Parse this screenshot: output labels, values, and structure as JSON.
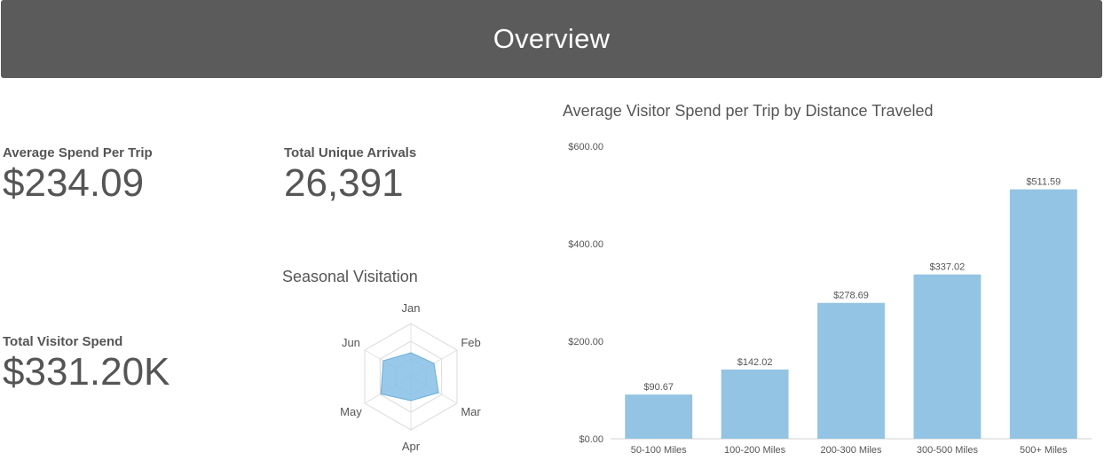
{
  "header": {
    "title": "Overview"
  },
  "kpis": {
    "avg_spend": {
      "label": "Average Spend Per Trip",
      "value": "$234.09"
    },
    "arrivals": {
      "label": "Total Unique Arrivals",
      "value": "26,391"
    },
    "total_spend": {
      "label": "Total Visitor Spend",
      "value": "$331.20K"
    }
  },
  "colors": {
    "bar": "#93c4e4",
    "radar_fill": "#86bfe6",
    "grid": "#e0e0e0",
    "text": "#555555"
  },
  "chart_data": [
    {
      "type": "radar",
      "title": "Seasonal Visitation",
      "categories": [
        "Jan",
        "Feb",
        "Mar",
        "Apr",
        "May",
        "Jun"
      ],
      "values": [
        0.45,
        0.5,
        0.6,
        0.45,
        0.65,
        0.6
      ],
      "rings": 3,
      "max": 1
    },
    {
      "type": "bar",
      "title": "Average Visitor Spend per Trip by Distance Traveled",
      "categories": [
        "50-100 Miles",
        "100-200 Miles",
        "200-300 Miles",
        "300-500 Miles",
        "500+ Miles"
      ],
      "values": [
        90.67,
        142.02,
        278.69,
        337.02,
        511.59
      ],
      "data_labels": [
        "$90.67",
        "$142.02",
        "$278.69",
        "$337.02",
        "$511.59"
      ],
      "yticks": [
        0,
        200,
        400,
        600
      ],
      "ytick_labels": [
        "$0.00",
        "$200.00",
        "$400.00",
        "$600.00"
      ],
      "ylim": [
        0,
        600
      ],
      "grid": false,
      "xlabel": "",
      "ylabel": ""
    }
  ]
}
